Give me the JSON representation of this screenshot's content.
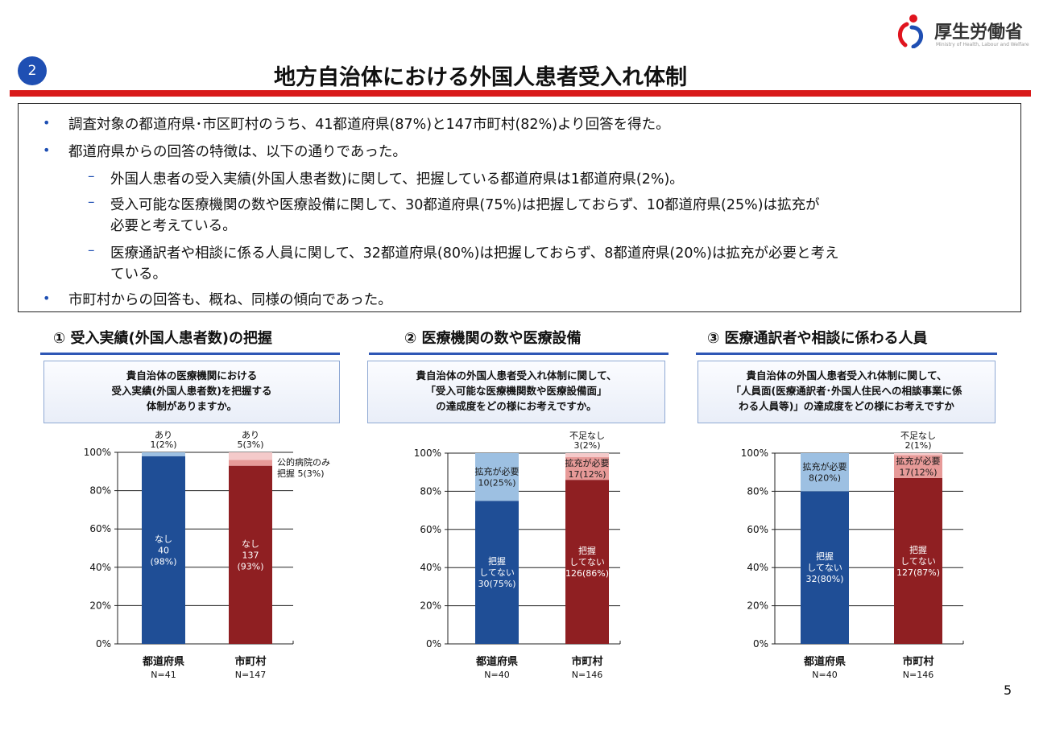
{
  "logo": {
    "text": "厚生労働省",
    "sub": "Ministry of Health, Labour and Welfare"
  },
  "slide_number": "2",
  "title": "地方自治体における外国人患者受入れ体制",
  "summary": [
    {
      "level": 1,
      "marker": "•",
      "text": "調査対象の都道府県･市区町村のうち、41都道府県(87%)と147市町村(82%)より回答を得た。"
    },
    {
      "level": 1,
      "marker": "•",
      "text": "都道府県からの回答の特徴は、以下の通りであった。"
    },
    {
      "level": 2,
      "marker": "–",
      "text": "外国人患者の受入実績(外国人患者数)に関して、把握している都道府県は1都道府県(2%)。"
    },
    {
      "level": 2,
      "marker": "–",
      "text": "受入可能な医療機関の数や医療設備に関して、30都道府県(75%)は把握しておらず、10都道府県(25%)は拡充が",
      "cont": "必要と考えている。"
    },
    {
      "level": 2,
      "marker": "–",
      "text": "医療通訳者や相談に係る人員に関して、32都道府県(80%)は把握しておらず、8都道府県(20%)は拡充が必要と考え",
      "cont": "ている。"
    },
    {
      "level": 1,
      "marker": "•",
      "text": "市町村からの回答も、概ね、同様の傾向であった。"
    }
  ],
  "page_number": "5",
  "colors": {
    "accent_red": "#d91a1a",
    "bar_blue": "#1f4e96",
    "bar_blue_light": "#9dc0e2",
    "bar_red": "#8f1f22",
    "bar_red_light": "#e79a98",
    "bar_pink": "#f4caca",
    "rule_blue": "#2f57b5"
  },
  "panels": [
    {
      "title": "① 受入実績(外国人患者数)の把握",
      "question": [
        "貴自治体の医療機関における",
        "受入実績(外国人患者数)を把握する",
        "体制がありますか。"
      ]
    },
    {
      "title": "② 医療機関の数や医療設備",
      "question": [
        "貴自治体の外国人患者受入れ体制に関して、",
        "「受入可能な医療機関数や医療設備面」",
        "の達成度をどの様にお考えですか。"
      ]
    },
    {
      "title": "③ 医療通訳者や相談に係わる人員",
      "question": [
        "貴自治体の外国人患者受入れ体制に関して、",
        "「人員面(医療通訳者･外国人住民への相談事業に係",
        "わる人員等)」の達成度をどの様にお考えですか"
      ]
    }
  ],
  "chart_data": [
    {
      "type": "bar",
      "stacked": true,
      "percent": true,
      "ylim": [
        0,
        100
      ],
      "yticks": [
        "0%",
        "20%",
        "40%",
        "60%",
        "80%",
        "100%"
      ],
      "categories": [
        "都道府県",
        "市町村"
      ],
      "n_labels": [
        "N=41",
        "N=147"
      ],
      "bars": [
        {
          "segments": [
            {
              "value": 98,
              "color": "#1f4e96",
              "label": [
                "なし",
                "40",
                "(98%)"
              ]
            },
            {
              "value": 2,
              "color": "#9dc0e2",
              "label": []
            }
          ],
          "top_label": [
            "あり",
            "1(2%)"
          ]
        },
        {
          "segments": [
            {
              "value": 93,
              "color": "#8f1f22",
              "label": [
                "なし",
                "137",
                "(93%)"
              ]
            },
            {
              "value": 3,
              "color": "#e79a98",
              "label": []
            },
            {
              "value": 4,
              "color": "#f4caca",
              "label": []
            }
          ],
          "top_label": [
            "あり",
            "5(3%)"
          ],
          "side_label": [
            "公的病院のみ",
            "把握 5(3%)"
          ]
        }
      ]
    },
    {
      "type": "bar",
      "stacked": true,
      "percent": true,
      "ylim": [
        0,
        100
      ],
      "yticks": [
        "0%",
        "20%",
        "40%",
        "60%",
        "80%",
        "100%"
      ],
      "categories": [
        "都道府県",
        "市町村"
      ],
      "n_labels": [
        "N=40",
        "N=146"
      ],
      "bars": [
        {
          "segments": [
            {
              "value": 75,
              "color": "#1f4e96",
              "label": [
                "把握",
                "してない",
                "30(75%)"
              ]
            },
            {
              "value": 25,
              "color": "#9dc0e2",
              "label": [
                "拡充が必要",
                "10(25%)"
              ]
            }
          ],
          "top_label": []
        },
        {
          "segments": [
            {
              "value": 86,
              "color": "#8f1f22",
              "label": [
                "把握",
                "してない",
                "126(86%)"
              ]
            },
            {
              "value": 12,
              "color": "#e79a98",
              "label": [
                "拡充が必要",
                "17(12%)"
              ]
            },
            {
              "value": 2,
              "color": "#f4caca",
              "label": []
            }
          ],
          "top_label": [
            "不足なし",
            "3(2%)"
          ]
        }
      ]
    },
    {
      "type": "bar",
      "stacked": true,
      "percent": true,
      "ylim": [
        0,
        100
      ],
      "yticks": [
        "0%",
        "20%",
        "40%",
        "60%",
        "80%",
        "100%"
      ],
      "categories": [
        "都道府県",
        "市町村"
      ],
      "n_labels": [
        "N=40",
        "N=146"
      ],
      "bars": [
        {
          "segments": [
            {
              "value": 80,
              "color": "#1f4e96",
              "label": [
                "把握",
                "してない",
                "32(80%)"
              ]
            },
            {
              "value": 20,
              "color": "#9dc0e2",
              "label": [
                "拡充が必要",
                "8(20%)"
              ]
            }
          ],
          "top_label": []
        },
        {
          "segments": [
            {
              "value": 87,
              "color": "#8f1f22",
              "label": [
                "把握",
                "してない",
                "127(87%)"
              ]
            },
            {
              "value": 12,
              "color": "#e79a98",
              "label": [
                "拡充が必要",
                "17(12%)"
              ]
            },
            {
              "value": 1,
              "color": "#f4caca",
              "label": []
            }
          ],
          "top_label": [
            "不足なし",
            "2(1%)"
          ]
        }
      ]
    }
  ]
}
